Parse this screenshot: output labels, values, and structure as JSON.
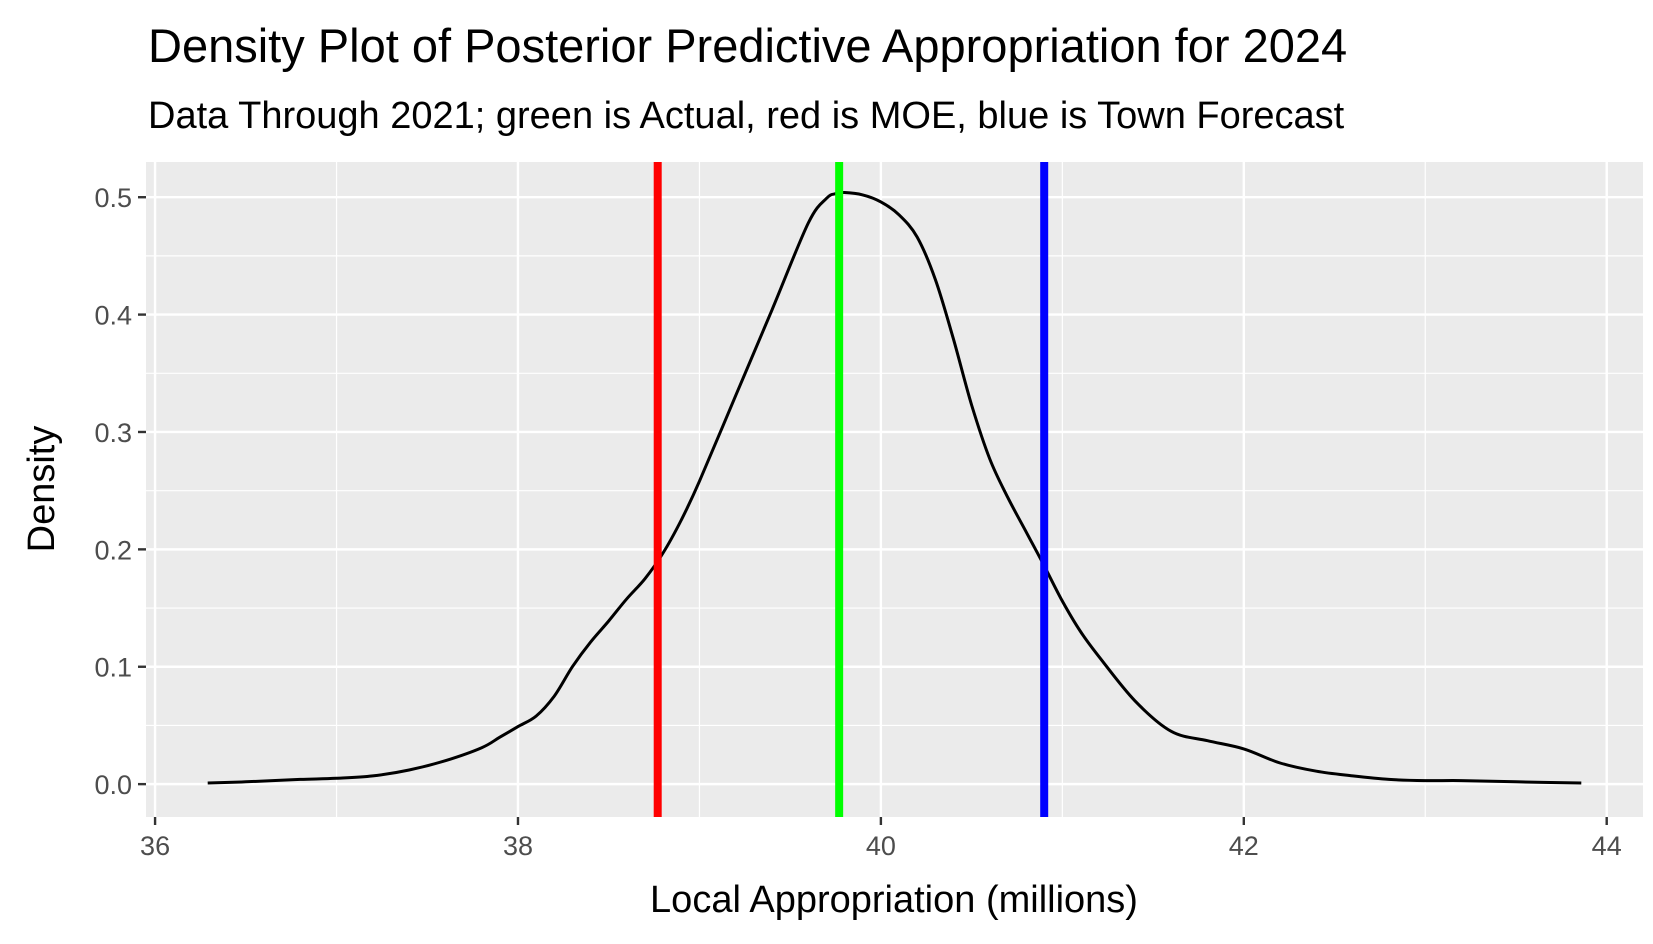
{
  "chart_data": {
    "type": "line",
    "title": "Density Plot of Posterior Predictive Appropriation for  2024",
    "subtitle": "Data Through 2021; green is Actual, red is MOE, blue is Town Forecast",
    "xlabel": "Local Appropriation (millions)",
    "ylabel": "Density",
    "xlim": [
      35.95,
      44.2
    ],
    "ylim": [
      -0.028,
      0.53
    ],
    "x_ticks": [
      36,
      38,
      40,
      42,
      44
    ],
    "y_ticks": [
      0.0,
      0.1,
      0.2,
      0.3,
      0.4,
      0.5
    ],
    "x_tick_labels": [
      "36",
      "38",
      "40",
      "42",
      "44"
    ],
    "y_tick_labels": [
      "0.0",
      "0.1",
      "0.2",
      "0.3",
      "0.4",
      "0.5"
    ],
    "grid": true,
    "colors": {
      "panel": "#ebebeb",
      "grid": "#ffffff",
      "density": "#000000",
      "actual": "#00ff00",
      "moe": "#ff0000",
      "town": "#0000ff"
    },
    "density_curve": {
      "x": [
        36.29,
        36.5,
        36.8,
        37.0,
        37.2,
        37.4,
        37.6,
        37.8,
        37.9,
        38.0,
        38.1,
        38.2,
        38.3,
        38.4,
        38.5,
        38.6,
        38.7,
        38.8,
        38.9,
        39.0,
        39.2,
        39.4,
        39.6,
        39.7,
        39.75,
        39.8,
        39.9,
        40.0,
        40.1,
        40.2,
        40.3,
        40.4,
        40.5,
        40.6,
        40.7,
        40.8,
        40.9,
        41.0,
        41.1,
        41.2,
        41.4,
        41.6,
        41.8,
        42.0,
        42.2,
        42.4,
        42.6,
        42.8,
        43.0,
        43.2,
        43.5,
        43.86
      ],
      "y": [
        0.001,
        0.002,
        0.004,
        0.005,
        0.007,
        0.012,
        0.02,
        0.031,
        0.04,
        0.049,
        0.058,
        0.075,
        0.1,
        0.121,
        0.139,
        0.158,
        0.175,
        0.197,
        0.225,
        0.258,
        0.331,
        0.404,
        0.478,
        0.499,
        0.503,
        0.504,
        0.502,
        0.496,
        0.485,
        0.466,
        0.43,
        0.379,
        0.323,
        0.277,
        0.244,
        0.215,
        0.186,
        0.156,
        0.13,
        0.109,
        0.071,
        0.045,
        0.037,
        0.03,
        0.018,
        0.011,
        0.007,
        0.004,
        0.003,
        0.003,
        0.002,
        0.001
      ]
    },
    "vlines": [
      {
        "name": "Actual",
        "x": 39.77,
        "color": "#00ff00"
      },
      {
        "name": "MOE",
        "x": 38.77,
        "color": "#ff0000"
      },
      {
        "name": "Town Forecast",
        "x": 40.9,
        "color": "#0000ff"
      }
    ]
  }
}
